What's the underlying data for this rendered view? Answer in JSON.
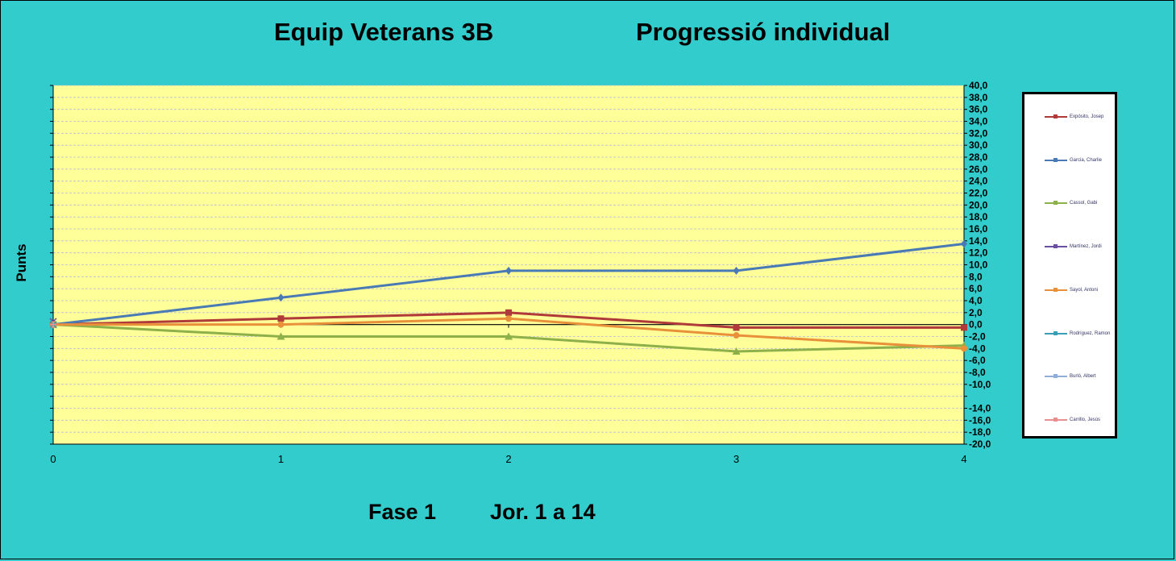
{
  "header": {
    "title_left": "Equip Veterans 3B",
    "title_right": "Progressió individual"
  },
  "footer": {
    "phase": "Fase 1",
    "rounds": "Jor.  1 a 14"
  },
  "chart_data": {
    "type": "line",
    "title": "Equip Veterans 3B            Progressió individual",
    "ylabel": "Punts",
    "xlabel": "",
    "x": [
      0,
      1,
      2,
      3,
      4
    ],
    "x_ticks": [
      "0",
      "1",
      "2",
      "3",
      "4"
    ],
    "ylim": [
      -20,
      40
    ],
    "y_ticks": [
      "40,0",
      "38,0",
      "36,0",
      "34,0",
      "32,0",
      "30,0",
      "28,0",
      "26,0",
      "24,0",
      "22,0",
      "20,0",
      "18,0",
      "16,0",
      "14,0",
      "12,0",
      "10,0",
      "8,0",
      "6,0",
      "4,0",
      "2,0",
      "0,0",
      "-2,0",
      "-4,0",
      "-6,0",
      "-8,0",
      "-10,0",
      "-14,0",
      "-16,0",
      "-18,0",
      "-20,0"
    ],
    "y_tick_values": [
      40,
      38,
      36,
      34,
      32,
      30,
      28,
      26,
      24,
      22,
      20,
      18,
      16,
      14,
      12,
      10,
      8,
      6,
      4,
      2,
      0,
      -2,
      -4,
      -6,
      -8,
      -10,
      -14,
      -16,
      -18,
      -20
    ],
    "grid": true,
    "legend_position": "right",
    "series": [
      {
        "name": "Expósito, Josep",
        "color": "#B03A3A",
        "marker": "square",
        "values": [
          0,
          1,
          2,
          -0.5,
          -0.5
        ]
      },
      {
        "name": "Garcia, Charlie",
        "color": "#4A7AB5",
        "marker": "diamond",
        "values": [
          0,
          4.5,
          9,
          9,
          13.5
        ]
      },
      {
        "name": "Cassol, Gabi",
        "color": "#8DB04A",
        "marker": "triangle",
        "values": [
          0,
          -2,
          -2,
          -4.5,
          -3.5
        ]
      },
      {
        "name": "Martínez, Jordi",
        "color": "#6B4FA0",
        "marker": "x",
        "values": [
          0.5,
          null,
          null,
          null,
          null
        ]
      },
      {
        "name": "Sayol, Antoni",
        "color": "#E8913A",
        "marker": "circle",
        "values": [
          0,
          0,
          1,
          -1.8,
          -4
        ]
      },
      {
        "name": "Rodríguez, Ramon",
        "color": "#3A9FB5",
        "marker": "x",
        "values": [
          0,
          null,
          null,
          null,
          null
        ]
      },
      {
        "name": "Burló, Albert",
        "color": "#8FAFD8",
        "marker": "plus",
        "values": [
          0,
          null,
          null,
          null,
          null
        ]
      },
      {
        "name": "Carrillo, Jesús",
        "color": "#E89090",
        "marker": "plus",
        "values": [
          0,
          null,
          null,
          null,
          null
        ]
      }
    ]
  }
}
